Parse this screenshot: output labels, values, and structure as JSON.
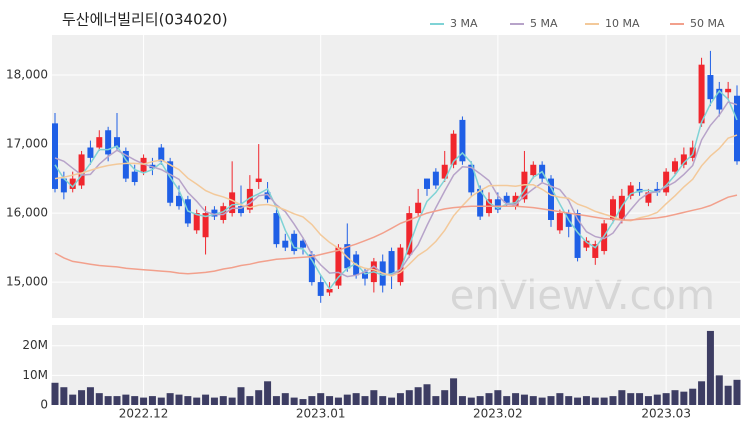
{
  "chart_data": [
    {
      "type": "candlestick",
      "title": "두산에너빌리티(034020)",
      "watermark": "enViewV.com",
      "up_color": "#f0262d",
      "down_color": "#1f5fe6",
      "grid": true,
      "legend": "top-right",
      "categories": [
        null,
        null,
        null,
        null,
        null,
        null,
        null,
        null,
        null,
        null,
        "2022.12",
        null,
        null,
        null,
        null,
        null,
        null,
        null,
        null,
        null,
        null,
        null,
        null,
        null,
        null,
        null,
        null,
        null,
        null,
        null,
        "2023.01",
        null,
        null,
        null,
        null,
        null,
        null,
        null,
        null,
        null,
        null,
        null,
        null,
        null,
        null,
        null,
        null,
        null,
        null,
        null,
        "2023.02",
        null,
        null,
        null,
        null,
        null,
        null,
        null,
        null,
        null,
        null,
        null,
        null,
        null,
        null,
        null,
        null,
        null,
        null,
        "2023.03",
        null,
        null,
        null,
        null,
        null,
        null,
        null,
        null
      ],
      "open": [
        17300,
        16500,
        16350,
        16400,
        16950,
        16950,
        17200,
        17100,
        16900,
        16600,
        16600,
        16700,
        16950,
        16750,
        16250,
        16200,
        15750,
        15650,
        16050,
        15900,
        16000,
        16100,
        16050,
        16450,
        16300,
        16000,
        15600,
        15700,
        15600,
        15400,
        15000,
        14850,
        14950,
        15550,
        15400,
        15150,
        15000,
        15300,
        15450,
        15000,
        15400,
        16000,
        16500,
        16600,
        16500,
        16700,
        17350,
        16700,
        16350,
        16000,
        16200,
        16250,
        16100,
        16200,
        16550,
        16700,
        16500,
        15750,
        16000,
        16000,
        15500,
        15350,
        15450,
        15900,
        15900,
        16250,
        16350,
        16150,
        16350,
        16300,
        16600,
        16700,
        16800,
        17300,
        18000,
        17800,
        17750,
        17700
      ],
      "high": [
        17450,
        16600,
        16600,
        16900,
        17050,
        17200,
        17250,
        17450,
        16950,
        16700,
        16850,
        16800,
        17000,
        16800,
        16400,
        16250,
        16050,
        16100,
        16100,
        16150,
        16750,
        16400,
        16550,
        17000,
        16450,
        16050,
        15700,
        15750,
        15650,
        15450,
        15100,
        15000,
        15550,
        15850,
        15450,
        15200,
        15350,
        15400,
        15500,
        15550,
        16100,
        16350,
        16500,
        16650,
        16900,
        17200,
        17400,
        16750,
        16400,
        16300,
        16300,
        16300,
        16300,
        16900,
        16750,
        16750,
        16550,
        16050,
        16050,
        16050,
        15650,
        15600,
        15900,
        16250,
        16350,
        16450,
        16450,
        16350,
        16450,
        16650,
        16800,
        16950,
        17050,
        18250,
        18350,
        17900,
        17900,
        17850
      ],
      "low": [
        16300,
        16200,
        16300,
        16350,
        16700,
        16900,
        16750,
        16900,
        16450,
        16400,
        16550,
        16550,
        16700,
        16100,
        16050,
        15800,
        15700,
        15400,
        15900,
        15850,
        15950,
        15950,
        16000,
        16350,
        16150,
        15500,
        15450,
        15400,
        15400,
        14950,
        14700,
        14800,
        14900,
        15150,
        15050,
        14950,
        14850,
        14850,
        14900,
        14950,
        15350,
        15950,
        16250,
        16350,
        16450,
        16650,
        16700,
        16250,
        15900,
        15950,
        16000,
        16100,
        16050,
        16150,
        16500,
        16450,
        15800,
        15700,
        15650,
        15300,
        15450,
        15250,
        15400,
        15850,
        15850,
        16200,
        16250,
        16100,
        16250,
        16250,
        16550,
        16650,
        16750,
        17250,
        17550,
        17400,
        17650,
        16700
      ],
      "close": [
        16350,
        16300,
        16500,
        16850,
        16800,
        17100,
        16850,
        16950,
        16500,
        16450,
        16800,
        16650,
        16750,
        16150,
        16100,
        15850,
        16000,
        16000,
        15950,
        16100,
        16300,
        16000,
        16350,
        16500,
        16200,
        15550,
        15500,
        15450,
        15500,
        15000,
        14800,
        14900,
        15500,
        15200,
        15100,
        15050,
        15300,
        14950,
        15100,
        15500,
        16000,
        16150,
        16350,
        16400,
        16700,
        17150,
        16750,
        16300,
        15950,
        16200,
        16050,
        16150,
        16250,
        16600,
        16700,
        16500,
        15900,
        16000,
        15800,
        15350,
        15600,
        15550,
        15850,
        16200,
        16250,
        16400,
        16300,
        16300,
        16300,
        16600,
        16750,
        16850,
        16950,
        18150,
        17650,
        17500,
        17800,
        16750
      ],
      "series": [
        {
          "name": "3 MA",
          "color": "#7fd3d6",
          "values": [
            16700,
            16500,
            16380,
            16550,
            16720,
            16920,
            16920,
            16970,
            16770,
            16630,
            16580,
            16630,
            16730,
            16520,
            16330,
            16030,
            15980,
            15950,
            15980,
            16020,
            16120,
            16130,
            16220,
            16280,
            16350,
            16080,
            15750,
            15500,
            15480,
            15320,
            15100,
            14900,
            15070,
            15200,
            15270,
            15120,
            15150,
            15100,
            15120,
            15180,
            15530,
            15880,
            16170,
            16300,
            16480,
            16750,
            16870,
            16730,
            16330,
            16150,
            16070,
            16130,
            16150,
            16330,
            16520,
            16600,
            16370,
            16130,
            15900,
            15720,
            15580,
            15500,
            15670,
            15870,
            16100,
            16280,
            16320,
            16330,
            16300,
            16400,
            16550,
            16730,
            16850,
            17320,
            17580,
            17770,
            17650,
            17350
          ]
        },
        {
          "name": "5 MA",
          "color": "#b7a3c9",
          "values": [
            16800,
            16750,
            16650,
            16550,
            16560,
            16710,
            16820,
            16910,
            16840,
            16770,
            16710,
            16670,
            16630,
            16560,
            16490,
            16300,
            16170,
            16020,
            15980,
            15980,
            16070,
            16070,
            16140,
            16250,
            16270,
            16120,
            16020,
            15840,
            15640,
            15400,
            15250,
            15130,
            15140,
            15080,
            15100,
            15150,
            15230,
            15120,
            15100,
            15180,
            15370,
            15540,
            15820,
            16080,
            16320,
            16550,
            16670,
            16660,
            16570,
            16470,
            16250,
            16130,
            16120,
            16250,
            16350,
            16440,
            16390,
            16340,
            16180,
            15910,
            15730,
            15660,
            15630,
            15710,
            15890,
            16050,
            16200,
            16290,
            16310,
            16380,
            16450,
            16560,
            16690,
            17060,
            17270,
            17420,
            17610,
            17570
          ]
        },
        {
          "name": "10 MA",
          "color": "#f3c99a",
          "values": [
            16500,
            16520,
            16550,
            16580,
            16620,
            16660,
            16690,
            16710,
            16720,
            16720,
            16710,
            16745,
            16770,
            16700,
            16630,
            16505,
            16420,
            16325,
            16270,
            16235,
            16185,
            16120,
            16080,
            16115,
            16125,
            16095,
            16045,
            15990,
            15945,
            15835,
            15685,
            15575,
            15490,
            15360,
            15250,
            15200,
            15180,
            15130,
            15090,
            15140,
            15260,
            15385,
            15470,
            15590,
            15750,
            15960,
            16105,
            16240,
            16325,
            16395,
            16400,
            16400,
            16390,
            16410,
            16410,
            16345,
            16260,
            16230,
            16215,
            16130,
            16085,
            16025,
            15985,
            15945,
            15900,
            15890,
            15930,
            15960,
            16010,
            16135,
            16250,
            16380,
            16490,
            16685,
            16825,
            16935,
            17085,
            17130
          ]
        },
        {
          "name": "50 MA",
          "color": "#f2a08c",
          "values": [
            15420,
            15350,
            15300,
            15280,
            15260,
            15240,
            15230,
            15220,
            15200,
            15190,
            15180,
            15170,
            15160,
            15150,
            15130,
            15120,
            15130,
            15140,
            15160,
            15190,
            15210,
            15240,
            15260,
            15290,
            15310,
            15330,
            15340,
            15350,
            15360,
            15370,
            15400,
            15430,
            15460,
            15510,
            15550,
            15600,
            15650,
            15710,
            15780,
            15850,
            15900,
            15950,
            16000,
            16030,
            16060,
            16080,
            16090,
            16100,
            16100,
            16100,
            16100,
            16100,
            16100,
            16090,
            16080,
            16060,
            16040,
            16020,
            16000,
            15980,
            15960,
            15940,
            15920,
            15910,
            15900,
            15900,
            15910,
            15920,
            15930,
            15950,
            15980,
            16010,
            16040,
            16070,
            16110,
            16170,
            16230,
            16260
          ]
        }
      ],
      "ylim": [
        14480,
        18580
      ],
      "yticks": [
        {
          "value": 15000,
          "label": "15,000"
        },
        {
          "value": 16000,
          "label": "16,000"
        },
        {
          "value": 17000,
          "label": "17,000"
        },
        {
          "value": 18000,
          "label": "18,000"
        }
      ]
    },
    {
      "type": "bar",
      "color": "#3d3d63",
      "values": [
        7500000,
        6000000,
        3500000,
        5000000,
        6000000,
        4000000,
        3000000,
        3000000,
        3500000,
        3000000,
        2500000,
        3000000,
        2500000,
        4000000,
        3500000,
        3000000,
        2500000,
        3500000,
        2500000,
        3000000,
        2500000,
        6000000,
        3000000,
        5000000,
        8000000,
        3000000,
        4000000,
        2500000,
        2000000,
        3000000,
        4000000,
        3000000,
        2500000,
        3500000,
        4000000,
        3000000,
        5000000,
        3000000,
        2500000,
        4000000,
        5000000,
        6000000,
        7000000,
        3000000,
        5000000,
        9000000,
        3000000,
        2500000,
        3000000,
        4000000,
        5000000,
        3000000,
        4000000,
        3500000,
        3000000,
        2500000,
        3000000,
        4000000,
        3000000,
        2500000,
        3000000,
        2500000,
        2500000,
        3000000,
        5000000,
        4000000,
        4000000,
        3000000,
        3500000,
        4000000,
        5000000,
        4500000,
        5500000,
        8000000,
        25000000,
        10000000,
        6500000,
        8500000
      ],
      "ylim": [
        0,
        27000000
      ],
      "yticks": [
        0,
        {
          "value": 10000000,
          "label": "10M"
        },
        {
          "value": 20000000,
          "label": "20M"
        }
      ]
    }
  ]
}
